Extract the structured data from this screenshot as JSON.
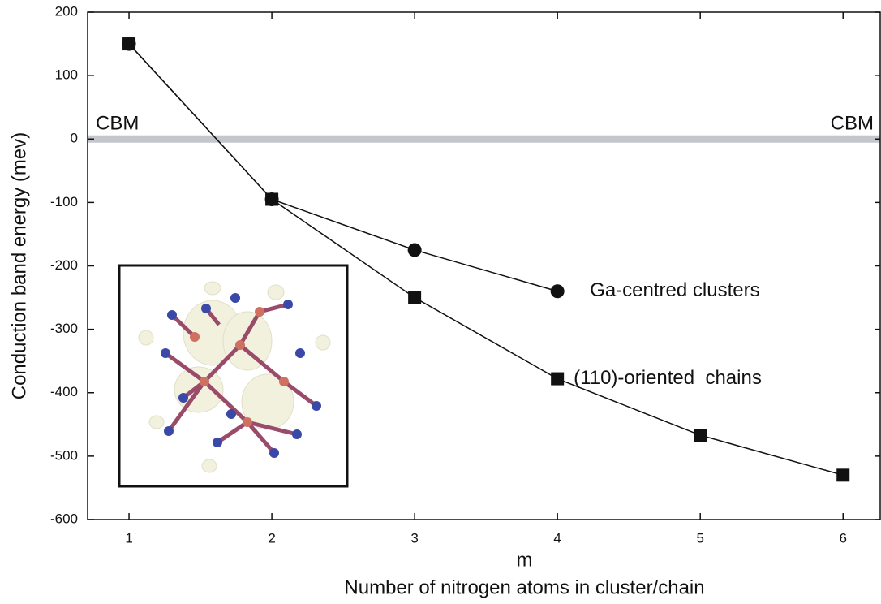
{
  "chart_data": {
    "type": "line",
    "x_label_top": "m",
    "x_label": "Number of nitrogen atoms in cluster/chain",
    "y_label": "Conduction band energy (mev)",
    "x": [
      1,
      2,
      3,
      4,
      5,
      6
    ],
    "series": [
      {
        "name": "Ga-centred clusters",
        "color": "#111111",
        "marker": "circle",
        "values": [
          150,
          -95,
          -175,
          -240,
          null,
          null
        ]
      },
      {
        "name": "(110)-oriented  chains",
        "color": "#111111",
        "marker": "square",
        "values": [
          150,
          -95,
          -250,
          -378,
          -467,
          -530
        ]
      }
    ],
    "reference_line": {
      "value": 0,
      "color": "#c3c6cc",
      "labels": [
        "CBM",
        "CBM"
      ]
    },
    "xlim": [
      0.71,
      6.26
    ],
    "xticks": [
      1,
      2,
      3,
      4,
      5,
      6
    ],
    "ylim": [
      -600,
      200
    ],
    "yticks": [
      -600,
      -500,
      -400,
      -300,
      -200,
      -100,
      0,
      100,
      200
    ]
  }
}
